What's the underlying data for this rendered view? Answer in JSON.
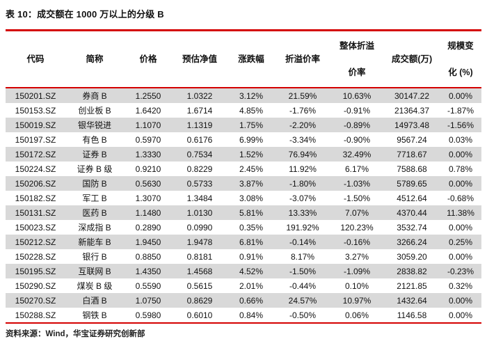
{
  "page": {
    "title": "表 10：成交额在 1000 万以上的分级 B",
    "source_note": "资料来源：Wind，华宝证券研究创新部",
    "accent_color": "#d40000",
    "row_shade_color": "#d9d9d9"
  },
  "table": {
    "headers": [
      "代码",
      "简称",
      "价格",
      "预估净值",
      "涨跌幅",
      "折溢价率",
      "整体折溢\n价率",
      "成交额(万)",
      "规模变\n化 (%)"
    ],
    "rows": [
      [
        "150201.SZ",
        "券商 B",
        "1.2550",
        "1.0322",
        "3.12%",
        "21.59%",
        "10.63%",
        "30147.22",
        "0.00%"
      ],
      [
        "150153.SZ",
        "创业板 B",
        "1.6420",
        "1.6714",
        "4.85%",
        "-1.76%",
        "-0.91%",
        "21364.37",
        "-1.87%"
      ],
      [
        "150019.SZ",
        "银华锐进",
        "1.1070",
        "1.1319",
        "1.75%",
        "-2.20%",
        "-0.89%",
        "14973.48",
        "-1.56%"
      ],
      [
        "150197.SZ",
        "有色 B",
        "0.5970",
        "0.6176",
        "6.99%",
        "-3.34%",
        "-0.90%",
        "9567.24",
        "0.03%"
      ],
      [
        "150172.SZ",
        "证券 B",
        "1.3330",
        "0.7534",
        "1.52%",
        "76.94%",
        "32.49%",
        "7718.67",
        "0.00%"
      ],
      [
        "150224.SZ",
        "证券 B 级",
        "0.9210",
        "0.8229",
        "2.45%",
        "11.92%",
        "6.17%",
        "7588.68",
        "0.78%"
      ],
      [
        "150206.SZ",
        "国防 B",
        "0.5630",
        "0.5733",
        "3.87%",
        "-1.80%",
        "-1.03%",
        "5789.65",
        "0.00%"
      ],
      [
        "150182.SZ",
        "军工 B",
        "1.3070",
        "1.3484",
        "3.08%",
        "-3.07%",
        "-1.50%",
        "4512.64",
        "-0.68%"
      ],
      [
        "150131.SZ",
        "医药 B",
        "1.1480",
        "1.0130",
        "5.81%",
        "13.33%",
        "7.07%",
        "4370.44",
        "11.38%"
      ],
      [
        "150023.SZ",
        "深成指 B",
        "0.2890",
        "0.0990",
        "0.35%",
        "191.92%",
        "120.23%",
        "3532.74",
        "0.00%"
      ],
      [
        "150212.SZ",
        "新能车 B",
        "1.9450",
        "1.9478",
        "6.81%",
        "-0.14%",
        "-0.16%",
        "3266.24",
        "0.25%"
      ],
      [
        "150228.SZ",
        "银行 B",
        "0.8850",
        "0.8181",
        "0.91%",
        "8.17%",
        "3.27%",
        "3059.20",
        "0.00%"
      ],
      [
        "150195.SZ",
        "互联网 B",
        "1.4350",
        "1.4568",
        "4.52%",
        "-1.50%",
        "-1.09%",
        "2838.82",
        "-0.23%"
      ],
      [
        "150290.SZ",
        "煤炭 B 级",
        "0.5590",
        "0.5615",
        "2.01%",
        "-0.44%",
        "0.10%",
        "2121.85",
        "0.32%"
      ],
      [
        "150270.SZ",
        "白酒 B",
        "1.0750",
        "0.8629",
        "0.66%",
        "24.57%",
        "10.97%",
        "1432.64",
        "0.00%"
      ],
      [
        "150288.SZ",
        "钢铁 B",
        "0.5980",
        "0.6010",
        "0.84%",
        "-0.50%",
        "0.06%",
        "1146.58",
        "0.00%"
      ]
    ]
  }
}
